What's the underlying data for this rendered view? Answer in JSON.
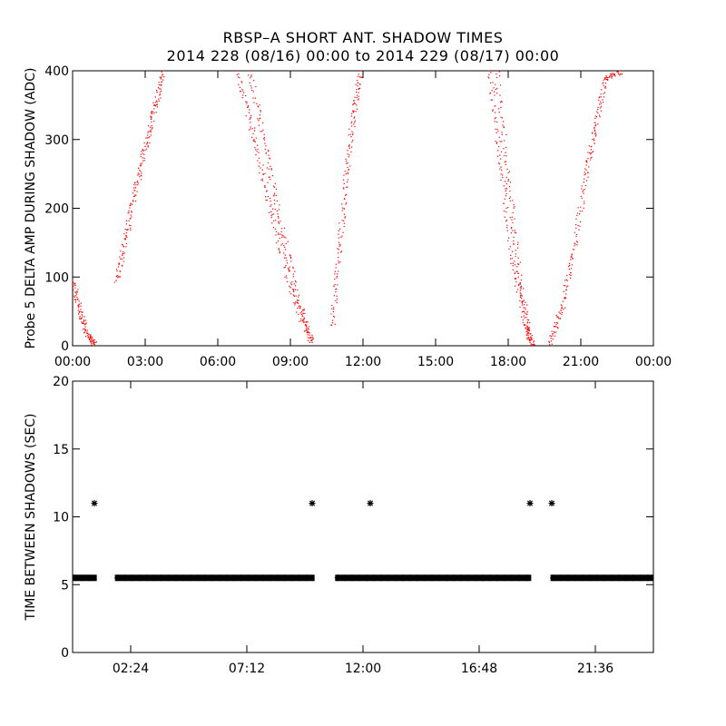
{
  "title_line1": "RBSP–A SHORT ANT. SHADOW TIMES",
  "title_line2": "2014 228 (08/16) 00:00 to 2014 229 (08/17) 00:00",
  "colors": {
    "series_top": "#ff0000",
    "series_bottom": "#000000",
    "axes": "#000000"
  },
  "chart_data": [
    {
      "type": "scatter",
      "ylabel": "Probe 5 DELTA AMP DURING SHADOW (ADC)",
      "xlabel": "",
      "xlim": [
        0,
        24
      ],
      "ylim": [
        0,
        400
      ],
      "xticks": [
        0,
        3,
        6,
        9,
        12,
        15,
        18,
        21,
        24
      ],
      "xtick_labels": [
        "00:00",
        "03:00",
        "06:00",
        "09:00",
        "12:00",
        "15:00",
        "18:00",
        "21:00",
        "00:00"
      ],
      "yticks": [
        0,
        100,
        200,
        300,
        400
      ],
      "ytick_labels": [
        "0",
        "100",
        "200",
        "300",
        "400"
      ],
      "marker": "dot",
      "segments": [
        {
          "name": "descending-1",
          "x": [
            0.0,
            0.3,
            0.6,
            0.9
          ],
          "y": [
            95,
            50,
            18,
            2
          ]
        },
        {
          "name": "ascending-1",
          "x": [
            1.8,
            2.2,
            2.6,
            3.0,
            3.4,
            3.75
          ],
          "y": [
            95,
            160,
            230,
            290,
            350,
            400
          ]
        },
        {
          "name": "descending-2a",
          "x": [
            6.8,
            7.5,
            8.2,
            9.0,
            9.8
          ],
          "y": [
            400,
            300,
            195,
            85,
            5
          ]
        },
        {
          "name": "descending-2b",
          "x": [
            7.3,
            8.0,
            8.7,
            9.4,
            9.9
          ],
          "y": [
            400,
            280,
            160,
            55,
            5
          ]
        },
        {
          "name": "ascending-2",
          "x": [
            10.7,
            11.0,
            11.3,
            11.6,
            11.9
          ],
          "y": [
            30,
            140,
            250,
            340,
            400
          ]
        },
        {
          "name": "descending-3a",
          "x": [
            17.2,
            17.7,
            18.2,
            18.7,
            19.0
          ],
          "y": [
            400,
            260,
            120,
            30,
            2
          ]
        },
        {
          "name": "descending-3b",
          "x": [
            17.5,
            18.0,
            18.5,
            18.9
          ],
          "y": [
            400,
            240,
            90,
            5
          ]
        },
        {
          "name": "ascending-3",
          "x": [
            19.7,
            20.2,
            20.7,
            21.2,
            21.6,
            22.0,
            22.6
          ],
          "y": [
            5,
            55,
            140,
            250,
            320,
            390,
            400
          ]
        }
      ]
    },
    {
      "type": "scatter",
      "ylabel": "TIME BETWEEN SHADOWS (SEC)",
      "xlabel": "",
      "xlim": [
        0,
        24
      ],
      "ylim": [
        0,
        20
      ],
      "xticks": [
        2.4,
        7.2,
        12.0,
        16.8,
        21.6
      ],
      "xtick_labels": [
        "02:24",
        "07:12",
        "12:00",
        "16:48",
        "21:36"
      ],
      "yticks": [
        0,
        5,
        10,
        15,
        20
      ],
      "ytick_labels": [
        "0",
        "5",
        "10",
        "15",
        "20"
      ],
      "marker": "asterisk",
      "baseline_value": 5.5,
      "baseline_spans": [
        [
          0.0,
          1.0
        ],
        [
          1.75,
          10.0
        ],
        [
          10.85,
          18.95
        ],
        [
          19.75,
          24.0
        ]
      ],
      "points": [
        {
          "x": 0.9,
          "y": 11.0
        },
        {
          "x": 9.9,
          "y": 11.0
        },
        {
          "x": 12.3,
          "y": 11.0
        },
        {
          "x": 18.9,
          "y": 11.0
        },
        {
          "x": 19.8,
          "y": 11.0
        }
      ]
    }
  ]
}
